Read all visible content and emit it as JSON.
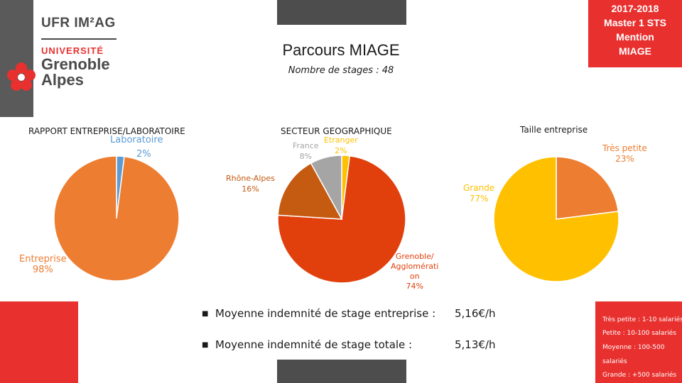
{
  "header": {
    "ufr": "UFR IM²AG",
    "universite": "UNIVERSITÉ",
    "grenoble": "Grenoble",
    "alpes": "Alpes",
    "badge_lines": [
      "2017-2018",
      "Master 1 STS",
      "Mention",
      "MIAGE"
    ],
    "title": "Parcours MIAGE",
    "subtitle": "Nombre de stages : 48"
  },
  "colors": {
    "brand_red": "#e8312f",
    "dark_grey": "#4d4d4d",
    "orange": "#ed7d31",
    "blue": "#5b9bd5",
    "red_orange": "#e1400d",
    "brown": "#c55a11",
    "grey": "#a5a5a5",
    "gold": "#ffc000"
  },
  "chart_data": [
    {
      "type": "pie",
      "title": "RAPPORT ENTREPRISE/LABORATOIRE",
      "slices": [
        {
          "label": "Laboratoire",
          "value": 2,
          "pct": "2%",
          "color": "#5b9bd5"
        },
        {
          "label": "Entreprise",
          "value": 98,
          "pct": "98%",
          "color": "#ed7d31"
        }
      ]
    },
    {
      "type": "pie",
      "title": "SECTEUR GEOGRAPHIQUE",
      "slices": [
        {
          "label": "Etranger",
          "value": 2,
          "pct": "2%",
          "color": "#ffc000"
        },
        {
          "label": "Grenoble/ Agglomérati on",
          "value": 74,
          "pct": "74%",
          "color": "#e1400d"
        },
        {
          "label": "Rhône-Alpes",
          "value": 16,
          "pct": "16%",
          "color": "#c55a11"
        },
        {
          "label": "France",
          "value": 8,
          "pct": "8%",
          "color": "#a5a5a5"
        }
      ]
    },
    {
      "type": "pie",
      "title": "Taille entreprise",
      "slices": [
        {
          "label": "Très petite",
          "value": 23,
          "pct": "23%",
          "color": "#ed7d31"
        },
        {
          "label": "Grande",
          "value": 77,
          "pct": "77%",
          "color": "#ffc000"
        }
      ]
    }
  ],
  "stats": [
    {
      "label": "Moyenne indemnité de stage entreprise :",
      "value": "5,16€/h"
    },
    {
      "label": "Moyenne indemnité de stage totale :",
      "value": "5,13€/h"
    }
  ],
  "size_legend": [
    "Très petite : 1-10 salariés",
    "Petite : 10-100 salariés",
    "Moyenne : 100-500",
    "salariés",
    "Grande : +500 salariés"
  ]
}
